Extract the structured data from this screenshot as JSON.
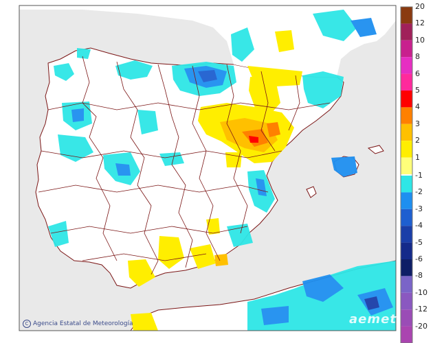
{
  "map": {
    "credit": "Agencia Estatal de Meteorología",
    "watermark": "aemet",
    "colors": {
      "sea": "#e9e9e9",
      "land": "#ffffff",
      "border": "#7a1414",
      "frame": "#555555"
    }
  },
  "legend": {
    "positive": [
      {
        "label": "20",
        "color": "#8a3a10"
      },
      {
        "label": "12",
        "color": "#a0205a"
      },
      {
        "label": "10",
        "color": "#c8208e"
      },
      {
        "label": "8",
        "color": "#e62ec2"
      },
      {
        "label": "6",
        "color": "#ff2a9c"
      },
      {
        "label": "5",
        "color": "#ff0000"
      },
      {
        "label": "4",
        "color": "#ff8000"
      },
      {
        "label": "3",
        "color": "#ffc000"
      },
      {
        "label": "2",
        "color": "#ffee00"
      },
      {
        "label": "1",
        "color": "#ffff7a"
      }
    ],
    "negative": [
      {
        "label": "-1",
        "color": "#2ee6e6"
      },
      {
        "label": "-2",
        "color": "#1e8ff0"
      },
      {
        "label": "-3",
        "color": "#1e5fd0"
      },
      {
        "label": "-4",
        "color": "#1a3ea8"
      },
      {
        "label": "-5",
        "color": "#142a8a"
      },
      {
        "label": "-6",
        "color": "#0e1e66"
      },
      {
        "label": "-8",
        "color": "#7a64c8"
      },
      {
        "label": "-10",
        "color": "#8a58c0"
      },
      {
        "label": "-12",
        "color": "#9a4cb6"
      },
      {
        "label": "-20",
        "color": "#aa44b0"
      }
    ]
  }
}
